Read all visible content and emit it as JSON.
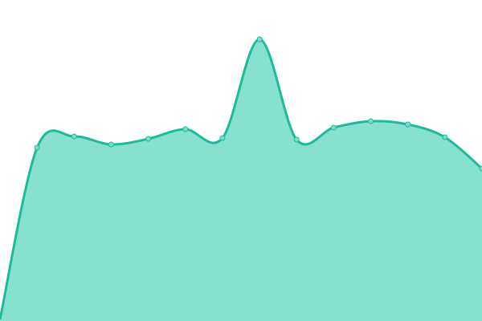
{
  "chart_data": {
    "type": "area",
    "x": [
      0,
      1,
      2,
      3,
      4,
      5,
      6,
      7,
      8,
      9,
      10,
      11,
      12,
      13
    ],
    "values": [
      2,
      216,
      230,
      220,
      227,
      239,
      228,
      351,
      226,
      241,
      249,
      245,
      229,
      190
    ],
    "ylim": [
      0,
      400
    ],
    "grid": false,
    "legend": "none",
    "colors": {
      "line": "#1abc9c",
      "fill": "#88e0cf",
      "marker": "#7fdcc9"
    }
  }
}
